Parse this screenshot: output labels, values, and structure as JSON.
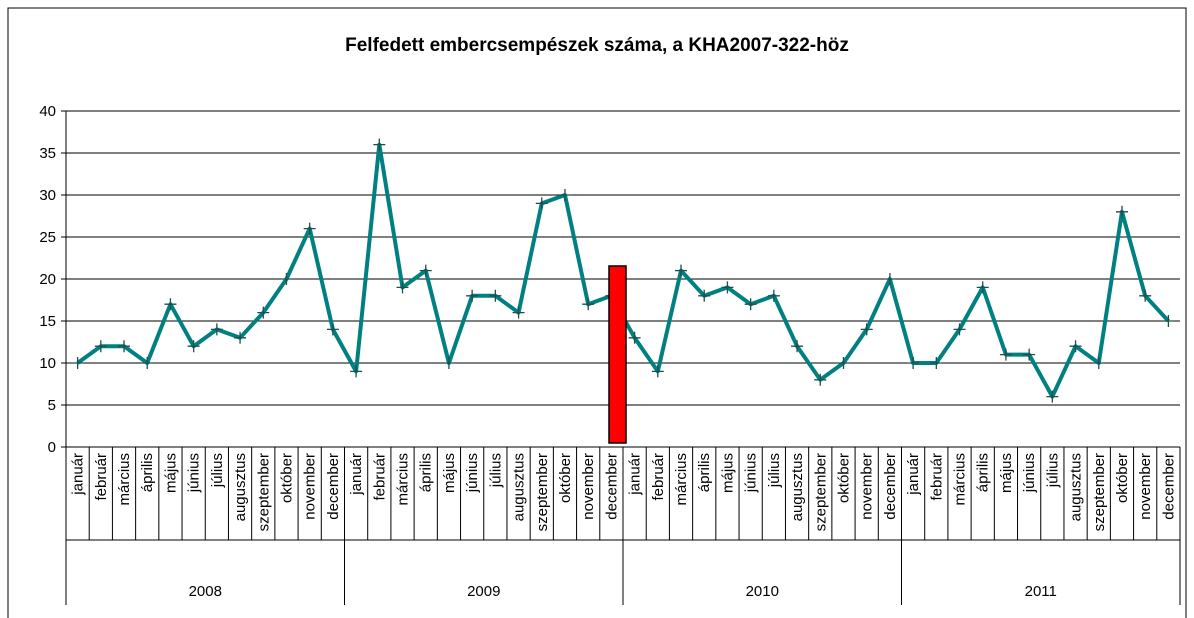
{
  "chart_data": {
    "type": "line",
    "title": "Felfedett embercsempészek száma, a KHA2007-322-höz",
    "categories": [
      "január",
      "február",
      "március",
      "április",
      "május",
      "június",
      "július",
      "augusztus",
      "szeptember",
      "október",
      "november",
      "december",
      "január",
      "február",
      "március",
      "április",
      "május",
      "június",
      "július",
      "augusztus",
      "szeptember",
      "október",
      "november",
      "december",
      "január",
      "február",
      "március",
      "április",
      "május",
      "június",
      "július",
      "augusztus",
      "szeptember",
      "október",
      "november",
      "december",
      "január",
      "február",
      "március",
      "április",
      "május",
      "június",
      "július",
      "augusztus",
      "szeptember",
      "október",
      "november",
      "december"
    ],
    "category_groups": [
      "2008",
      "2009",
      "2010",
      "2011"
    ],
    "values": [
      10,
      12,
      12,
      10,
      17,
      12,
      14,
      13,
      16,
      20,
      26,
      14,
      9,
      36,
      19,
      21,
      10,
      18,
      18,
      16,
      29,
      30,
      17,
      18,
      13,
      9,
      21,
      18,
      19,
      17,
      18,
      12,
      8,
      10,
      14,
      20,
      10,
      10,
      14,
      19,
      11,
      11,
      6,
      12,
      10,
      28,
      18,
      15
    ],
    "color": "#008080",
    "ylim": [
      0,
      40
    ],
    "yticks": [
      0,
      5,
      10,
      15,
      20,
      25,
      30,
      35,
      40
    ],
    "grid": true
  }
}
